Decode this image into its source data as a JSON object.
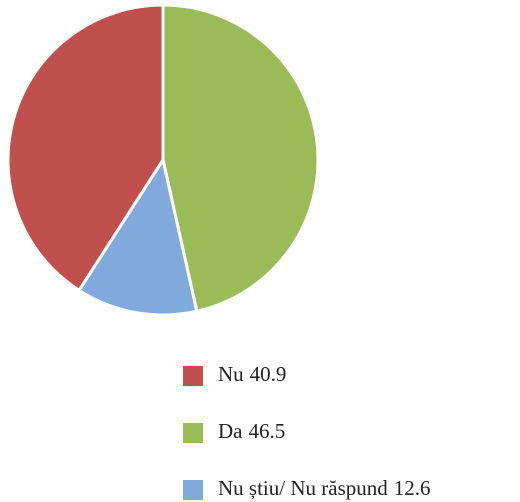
{
  "chart_data": {
    "type": "pie",
    "categories": [
      "Nu",
      "Da",
      "Nu știu/ Nu răspund"
    ],
    "values": [
      40.9,
      46.5,
      12.6
    ],
    "colors": [
      "#c0504d",
      "#9bbb59",
      "#7faadb"
    ],
    "legend": "bottom"
  }
}
